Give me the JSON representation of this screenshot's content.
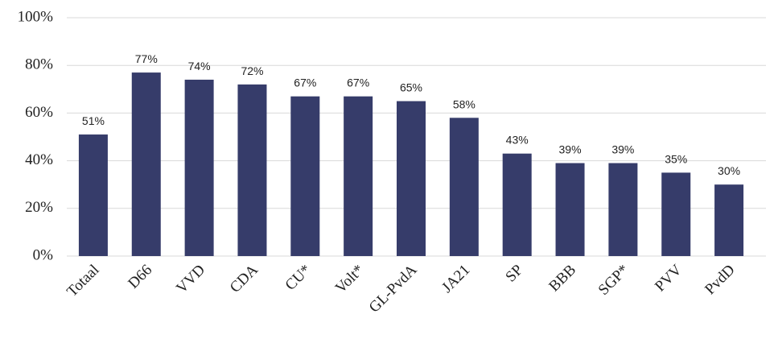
{
  "chart_data": {
    "type": "bar",
    "categories": [
      "Totaal",
      "D66",
      "VVD",
      "CDA",
      "CU*",
      "Volt*",
      "GL-PvdA",
      "JA21",
      "SP",
      "BBB",
      "SGP*",
      "PVV",
      "PvdD"
    ],
    "values": [
      51,
      77,
      74,
      72,
      67,
      67,
      65,
      58,
      43,
      39,
      39,
      35,
      30
    ],
    "value_labels": [
      "51%",
      "77%",
      "74%",
      "72%",
      "67%",
      "67%",
      "65%",
      "58%",
      "43%",
      "39%",
      "39%",
      "35%",
      "30%"
    ],
    "color": "#363c6a",
    "ylim": [
      0,
      100
    ],
    "yticks": [
      {
        "value": 0,
        "label": "0%"
      },
      {
        "value": 20,
        "label": "20%"
      },
      {
        "value": 40,
        "label": "40%"
      },
      {
        "value": 60,
        "label": "60%"
      },
      {
        "value": 80,
        "label": "80%"
      },
      {
        "value": 100,
        "label": "100%"
      }
    ],
    "grid": true
  }
}
